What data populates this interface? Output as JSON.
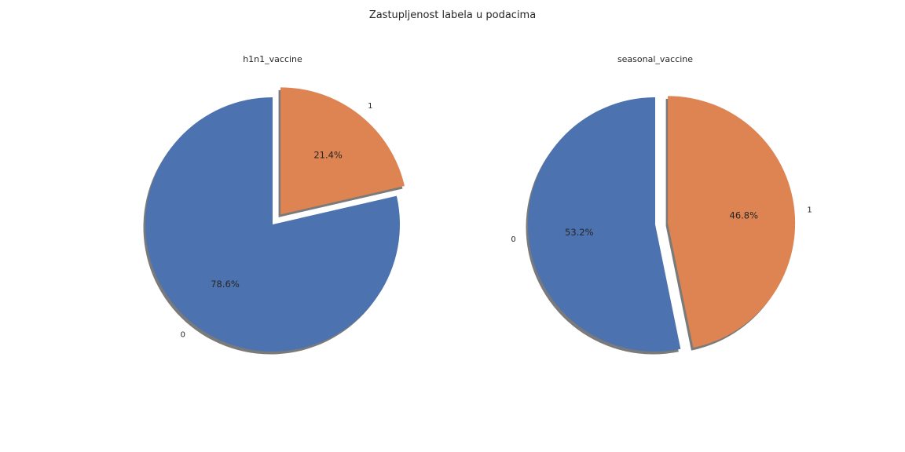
{
  "figure": {
    "suptitle": "Zastupljenost labela u podacima"
  },
  "chart_data": [
    {
      "type": "pie",
      "title": "h1n1_vaccine",
      "labels": [
        "0",
        "1"
      ],
      "values": [
        78.6,
        21.4
      ],
      "percent_labels": [
        "78.6%",
        "21.4%"
      ],
      "colors": [
        "#4c72b0",
        "#dd8452"
      ],
      "exploded": "1",
      "shadow": true
    },
    {
      "type": "pie",
      "title": "seasonal_vaccine",
      "labels": [
        "0",
        "1"
      ],
      "values": [
        53.2,
        46.8
      ],
      "percent_labels": [
        "53.2%",
        "46.8%"
      ],
      "colors": [
        "#4c72b0",
        "#dd8452"
      ],
      "exploded": "1",
      "shadow": true
    }
  ]
}
